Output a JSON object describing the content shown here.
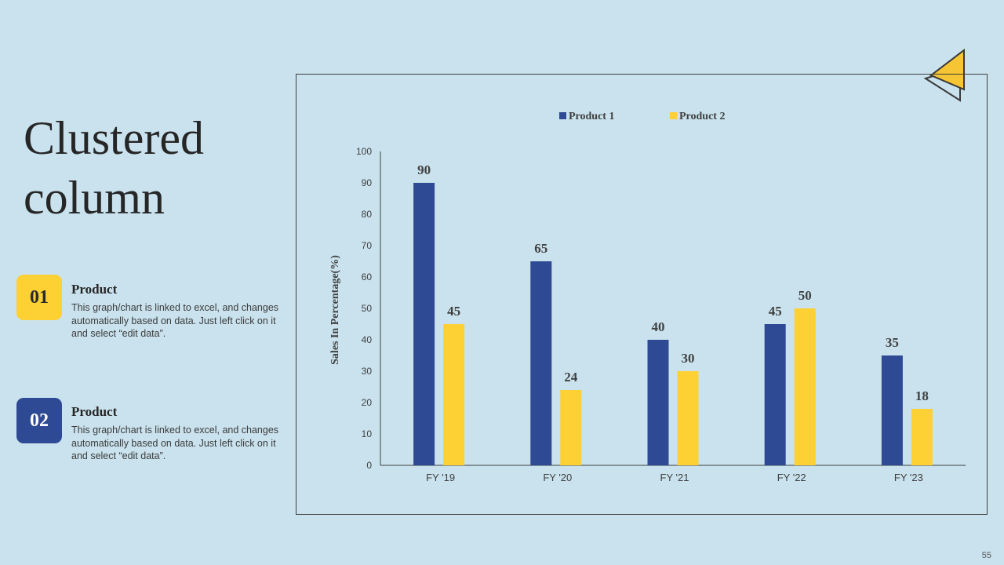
{
  "slide": {
    "title": "Clustered column",
    "page_number": "55"
  },
  "items": [
    {
      "number": "01",
      "heading": "Product",
      "description": "This graph/chart is linked to excel, and changes automatically based on data. Just left click on it and select “edit data”."
    },
    {
      "number": "02",
      "heading": "Product",
      "description": "This graph/chart is linked to excel, and changes automatically based on data. Just left click on it and select “edit data”."
    }
  ],
  "colors": {
    "background": "#c9e2ed",
    "product1": "#2e4a94",
    "product2": "#fdd033",
    "deco_fill": "#f6c533",
    "deco_stroke": "#3a3a3a"
  },
  "chart_data": {
    "type": "bar",
    "title": "",
    "xlabel": "",
    "ylabel": "Sales In Percentage(%)",
    "categories": [
      "FY '19",
      "FY '20",
      "FY '21",
      "FY '22",
      "FY '23"
    ],
    "series": [
      {
        "name": "Product 1",
        "values": [
          90,
          65,
          40,
          45,
          35
        ],
        "color": "#2e4a94"
      },
      {
        "name": "Product  2",
        "values": [
          45,
          24,
          30,
          50,
          18
        ],
        "color": "#fdd033"
      }
    ],
    "ylim": [
      0,
      100
    ],
    "yticks": [
      0,
      10,
      20,
      30,
      40,
      50,
      60,
      70,
      80,
      90,
      100
    ],
    "grid": false,
    "legend": "top-center",
    "data_labels": true
  }
}
